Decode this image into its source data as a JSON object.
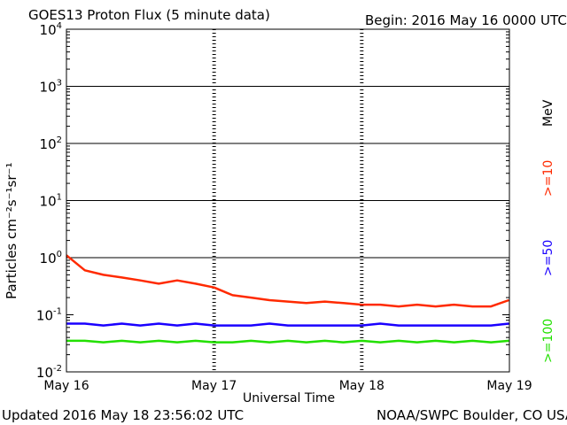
{
  "header": {
    "title": "GOES13 Proton Flux (5 minute data)",
    "begin": "Begin: 2016 May 16 0000 UTC"
  },
  "footer": {
    "updated": "Updated 2016 May 18 23:56:02 UTC",
    "credit": "NOAA/SWPC Boulder, CO USA"
  },
  "colors": {
    "ge10": "#ff2a00",
    "ge50": "#1a00ff",
    "ge100": "#22e000"
  },
  "chart_data": {
    "type": "line",
    "title": "GOES13 Proton Flux (5 minute data)",
    "xlabel": "Universal Time",
    "ylabel": "Particles cm⁻²s⁻¹sr⁻¹",
    "yscale": "log",
    "ylim": [
      0.01,
      10000
    ],
    "xlim": [
      "2016-05-16",
      "2016-05-19"
    ],
    "x_ticks": [
      "May 16",
      "May 17",
      "May 18",
      "May 19"
    ],
    "y_ticks": [
      {
        "base": "10",
        "exp": "-2"
      },
      {
        "base": "10",
        "exp": "-1"
      },
      {
        "base": "10",
        "exp": "0"
      },
      {
        "base": "10",
        "exp": "1"
      },
      {
        "base": "10",
        "exp": "2"
      },
      {
        "base": "10",
        "exp": "3"
      },
      {
        "base": "10",
        "exp": "4"
      }
    ],
    "thresholds": [
      1,
      10,
      100,
      1000
    ],
    "legend": {
      "unit": "MeV",
      "placement": "right"
    },
    "x": [
      "2016-05-16 00:00",
      "2016-05-16 03:00",
      "2016-05-16 06:00",
      "2016-05-16 09:00",
      "2016-05-16 12:00",
      "2016-05-16 15:00",
      "2016-05-16 18:00",
      "2016-05-16 21:00",
      "2016-05-17 00:00",
      "2016-05-17 03:00",
      "2016-05-17 06:00",
      "2016-05-17 09:00",
      "2016-05-17 12:00",
      "2016-05-17 15:00",
      "2016-05-17 18:00",
      "2016-05-17 21:00",
      "2016-05-18 00:00",
      "2016-05-18 03:00",
      "2016-05-18 06:00",
      "2016-05-18 09:00",
      "2016-05-18 12:00",
      "2016-05-18 15:00",
      "2016-05-18 18:00",
      "2016-05-18 21:00",
      "2016-05-18 23:55"
    ],
    "series": [
      {
        "name": ">=10",
        "color": "#ff2a00",
        "values": [
          1.1,
          0.6,
          0.5,
          0.45,
          0.4,
          0.35,
          0.4,
          0.35,
          0.3,
          0.22,
          0.2,
          0.18,
          0.17,
          0.16,
          0.17,
          0.16,
          0.15,
          0.15,
          0.14,
          0.15,
          0.14,
          0.15,
          0.14,
          0.14,
          0.18
        ]
      },
      {
        "name": ">=50",
        "color": "#1a00ff",
        "values": [
          0.07,
          0.07,
          0.065,
          0.07,
          0.065,
          0.07,
          0.065,
          0.07,
          0.065,
          0.065,
          0.065,
          0.07,
          0.065,
          0.065,
          0.065,
          0.065,
          0.065,
          0.07,
          0.065,
          0.065,
          0.065,
          0.065,
          0.065,
          0.065,
          0.07
        ]
      },
      {
        "name": ">=100",
        "color": "#22e000",
        "values": [
          0.035,
          0.035,
          0.033,
          0.035,
          0.033,
          0.035,
          0.033,
          0.035,
          0.033,
          0.033,
          0.035,
          0.033,
          0.035,
          0.033,
          0.035,
          0.033,
          0.035,
          0.033,
          0.035,
          0.033,
          0.035,
          0.033,
          0.035,
          0.033,
          0.035
        ]
      }
    ]
  }
}
